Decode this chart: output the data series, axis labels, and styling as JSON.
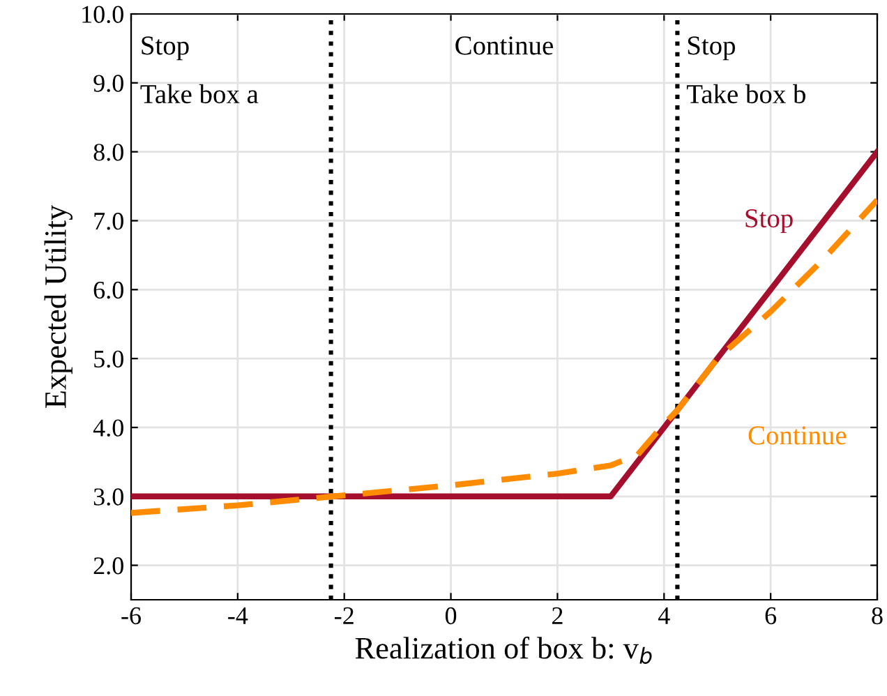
{
  "chart_data": {
    "type": "line",
    "xlabel": "Realization of box b: v$_{b}$",
    "ylabel": "Expected Utility",
    "x": [
      -6,
      3,
      8
    ],
    "series": [
      {
        "name": "Stop",
        "color": "#a50f2d",
        "line_style": "solid",
        "values": [
          3.0,
          3.0,
          8.0
        ]
      },
      {
        "name": "Continue",
        "color": "#ff8c00",
        "line_style": "dashed",
        "x": [
          -6,
          -4,
          -2.2,
          0,
          2,
          3,
          3.5,
          4,
          4.25,
          5,
          6,
          7,
          8
        ],
        "values": [
          2.76,
          2.87,
          3.0,
          3.16,
          3.33,
          3.45,
          3.6,
          4.05,
          4.25,
          5.0,
          5.68,
          6.45,
          7.3
        ]
      }
    ],
    "xlim": [
      -6,
      8
    ],
    "ylim": [
      1.5,
      10
    ],
    "xticks": [
      -6,
      -4,
      -2,
      0,
      2,
      4,
      6,
      8
    ],
    "yticks": [
      {
        "value": 2,
        "label": "2.0"
      },
      {
        "value": 3,
        "label": "3.0"
      },
      {
        "value": 4,
        "label": "4.0"
      },
      {
        "value": 5,
        "label": "5.0"
      },
      {
        "value": 6,
        "label": "6.0"
      },
      {
        "value": 7,
        "label": "7.0"
      },
      {
        "value": 8,
        "label": "8.0"
      },
      {
        "value": 9,
        "label": "9.0"
      },
      {
        "value": 10,
        "label": "10.0"
      }
    ],
    "ref_lines": [
      {
        "axis": "x",
        "value": -2.25,
        "color": "#000000",
        "line_style": "dotted"
      },
      {
        "axis": "x",
        "value": 4.25,
        "color": "#000000",
        "line_style": "dotted"
      }
    ],
    "annotations": [
      "Stop",
      "Take box a",
      "Continue",
      "Stop",
      "Take box b"
    ],
    "grid": true,
    "legend": false
  }
}
